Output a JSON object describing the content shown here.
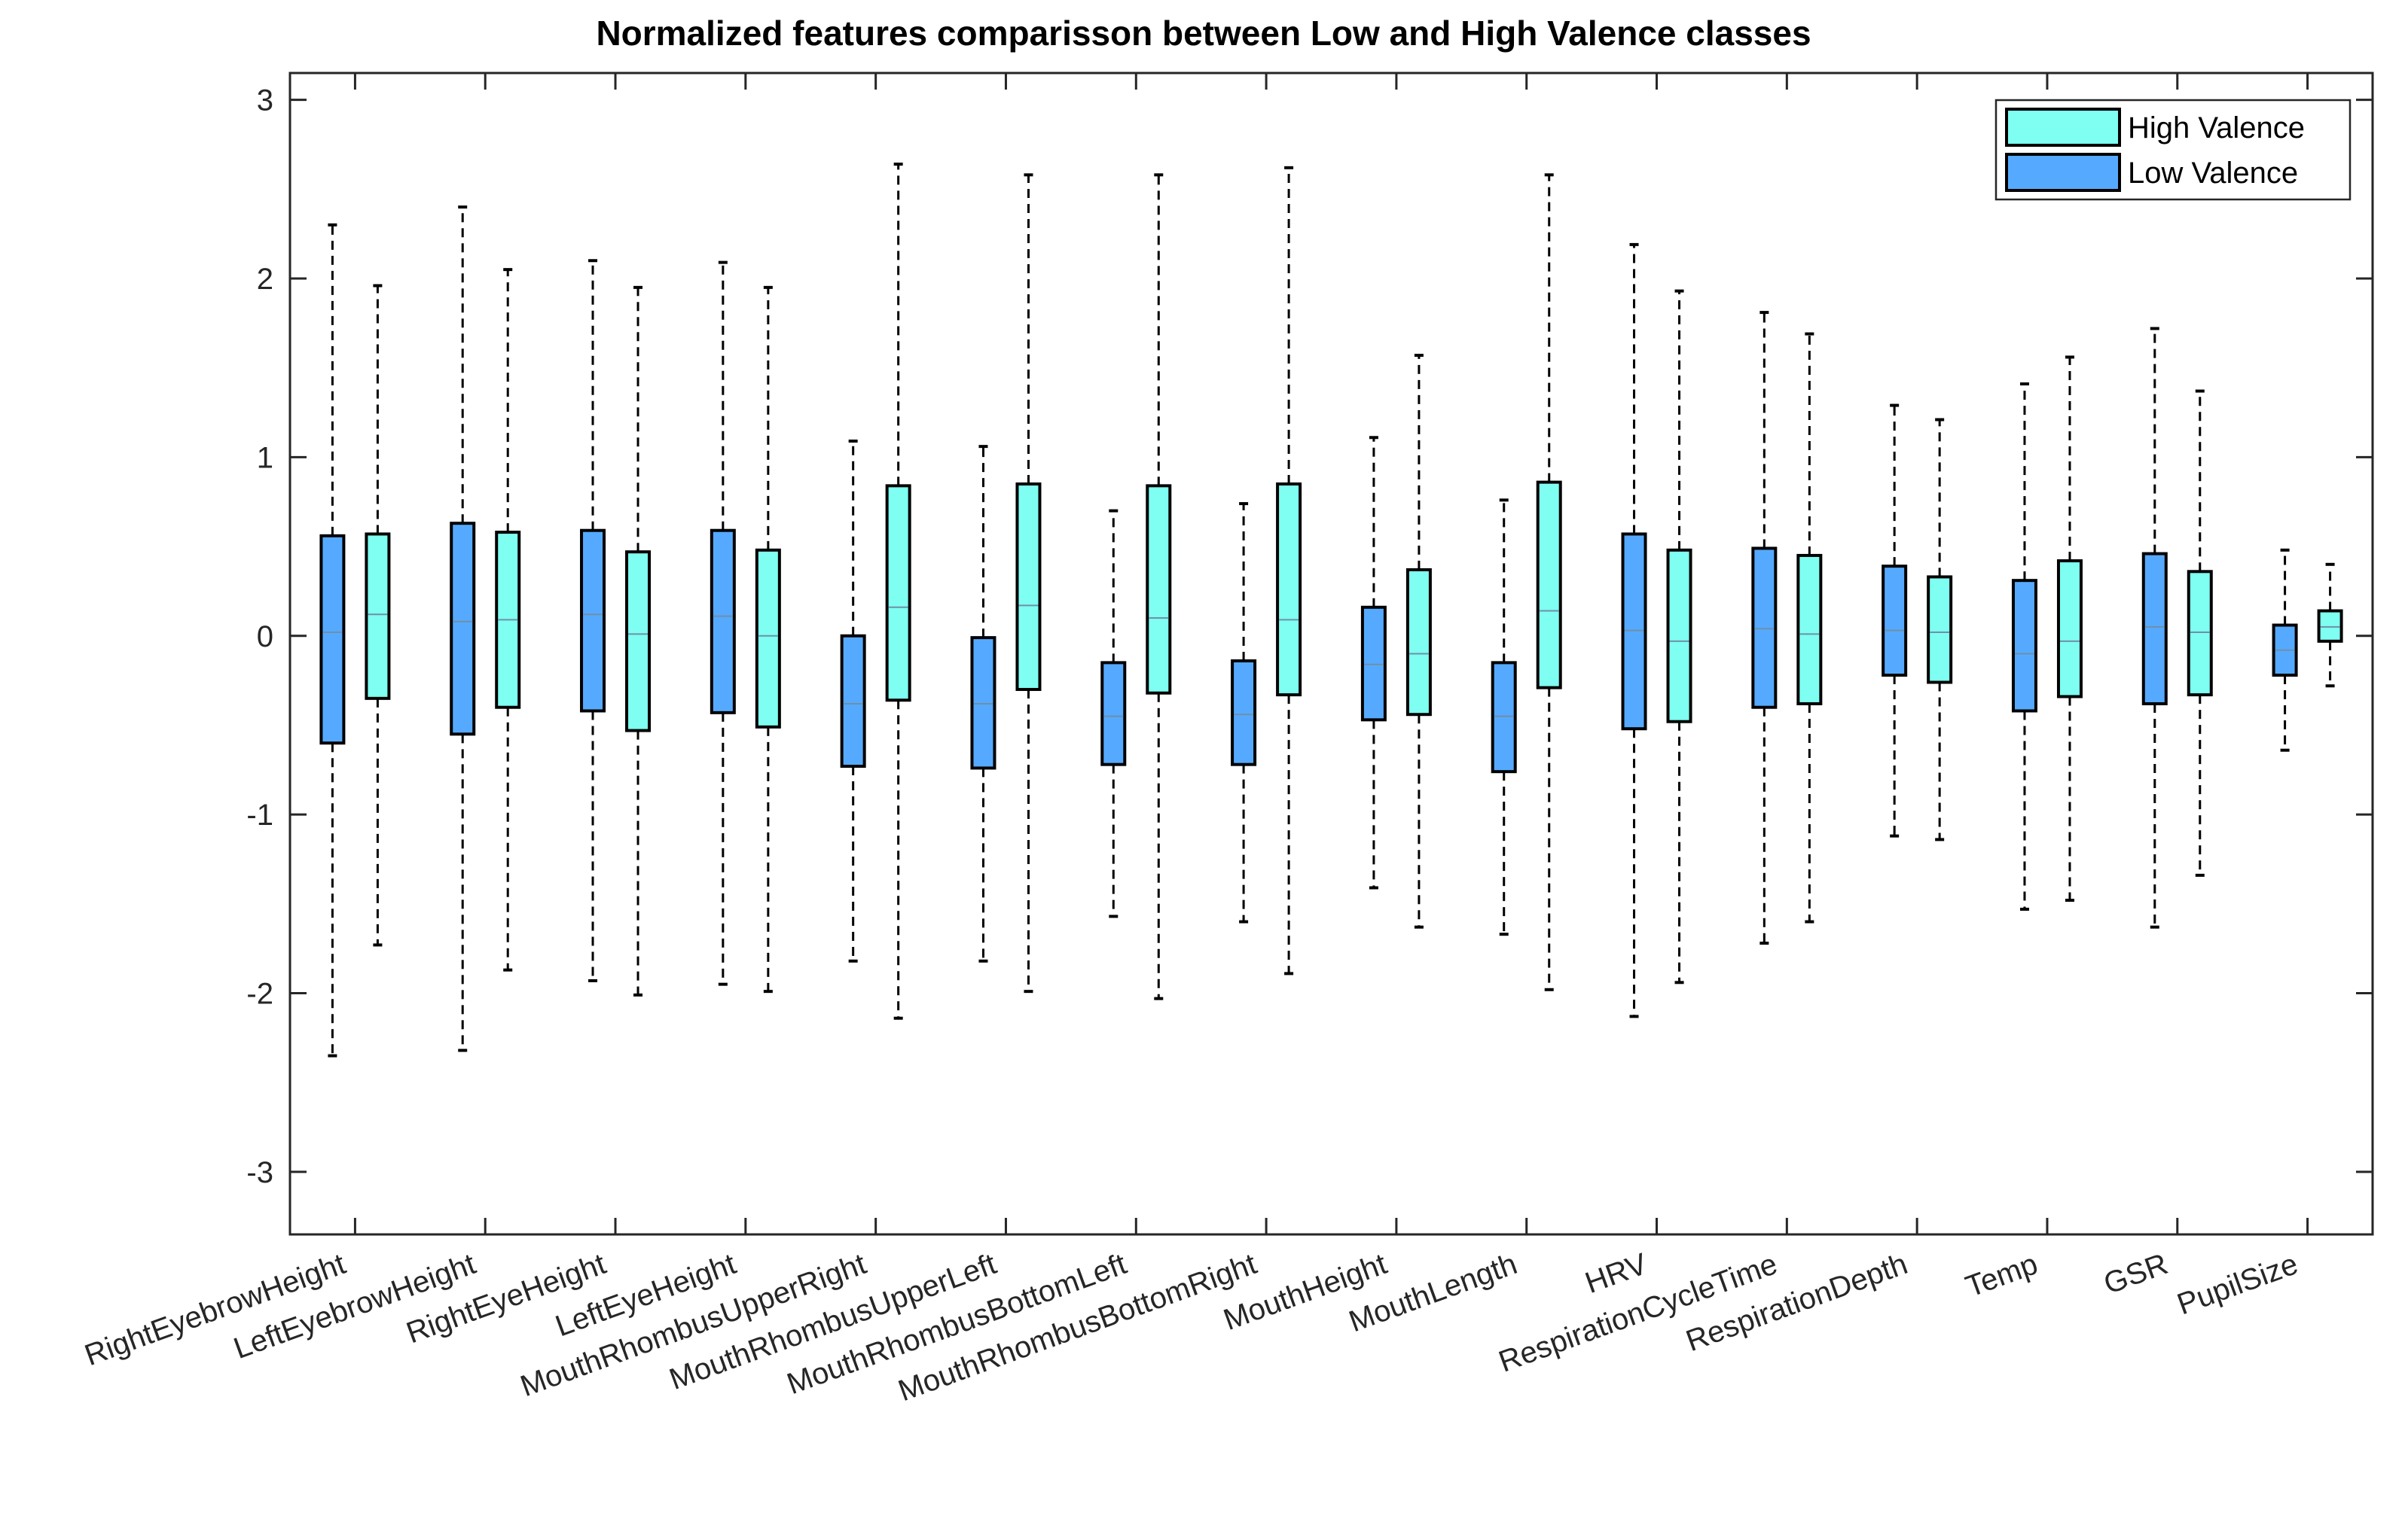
{
  "chart_data": {
    "type": "boxplot",
    "title": "Normalized features comparisson between Low and High Valence classes",
    "xlabel": "",
    "ylabel": "",
    "ylim": [
      -3.35,
      3.15
    ],
    "yticks": [
      -3,
      -2,
      -1,
      0,
      1,
      2,
      3
    ],
    "grid": false,
    "legend_position": "top-right",
    "categories": [
      "RightEyebrowHeight",
      "LeftEyebrowHeight",
      "RightEyeHeight",
      "LeftEyeHeight",
      "MouthRhombusUpperRight",
      "MouthRhombusUpperLeft",
      "MouthRhombusBottomLeft",
      "MouthRhombusBottomRight",
      "MouthHeight",
      "MouthLength",
      "HRV",
      "RespirationCycleTime",
      "RespirationDepth",
      "Temp",
      "GSR",
      "PupilSize"
    ],
    "series": [
      {
        "name": "Low Valence",
        "color": "#55aaff",
        "boxes": [
          {
            "whisker_low": -2.35,
            "q1": -0.6,
            "median": 0.02,
            "q3": 0.56,
            "whisker_high": 2.3
          },
          {
            "whisker_low": -2.32,
            "q1": -0.55,
            "median": 0.08,
            "q3": 0.63,
            "whisker_high": 2.4
          },
          {
            "whisker_low": -1.93,
            "q1": -0.42,
            "median": 0.12,
            "q3": 0.59,
            "whisker_high": 2.1
          },
          {
            "whisker_low": -1.95,
            "q1": -0.43,
            "median": 0.11,
            "q3": 0.59,
            "whisker_high": 2.09
          },
          {
            "whisker_low": -1.82,
            "q1": -0.73,
            "median": -0.38,
            "q3": 0.0,
            "whisker_high": 1.09
          },
          {
            "whisker_low": -1.82,
            "q1": -0.74,
            "median": -0.38,
            "q3": -0.01,
            "whisker_high": 1.06
          },
          {
            "whisker_low": -1.57,
            "q1": -0.72,
            "median": -0.45,
            "q3": -0.15,
            "whisker_high": 0.7
          },
          {
            "whisker_low": -1.6,
            "q1": -0.72,
            "median": -0.44,
            "q3": -0.14,
            "whisker_high": 0.74
          },
          {
            "whisker_low": -1.41,
            "q1": -0.47,
            "median": -0.16,
            "q3": 0.16,
            "whisker_high": 1.11
          },
          {
            "whisker_low": -1.67,
            "q1": -0.76,
            "median": -0.45,
            "q3": -0.15,
            "whisker_high": 0.76
          },
          {
            "whisker_low": -2.13,
            "q1": -0.52,
            "median": 0.03,
            "q3": 0.57,
            "whisker_high": 2.19
          },
          {
            "whisker_low": -1.72,
            "q1": -0.4,
            "median": 0.04,
            "q3": 0.49,
            "whisker_high": 1.81
          },
          {
            "whisker_low": -1.12,
            "q1": -0.22,
            "median": 0.03,
            "q3": 0.39,
            "whisker_high": 1.29
          },
          {
            "whisker_low": -1.53,
            "q1": -0.42,
            "median": -0.1,
            "q3": 0.31,
            "whisker_high": 1.41
          },
          {
            "whisker_low": -1.63,
            "q1": -0.38,
            "median": 0.05,
            "q3": 0.46,
            "whisker_high": 1.72
          },
          {
            "whisker_low": -0.64,
            "q1": -0.22,
            "median": -0.08,
            "q3": 0.06,
            "whisker_high": 0.48
          }
        ]
      },
      {
        "name": "High Valence",
        "color": "#7ffff2",
        "boxes": [
          {
            "whisker_low": -1.73,
            "q1": -0.35,
            "median": 0.12,
            "q3": 0.57,
            "whisker_high": 1.96
          },
          {
            "whisker_low": -1.87,
            "q1": -0.4,
            "median": 0.09,
            "q3": 0.58,
            "whisker_high": 2.05
          },
          {
            "whisker_low": -2.01,
            "q1": -0.53,
            "median": 0.01,
            "q3": 0.47,
            "whisker_high": 1.95
          },
          {
            "whisker_low": -1.99,
            "q1": -0.51,
            "median": 0.0,
            "q3": 0.48,
            "whisker_high": 1.95
          },
          {
            "whisker_low": -2.14,
            "q1": -0.36,
            "median": 0.16,
            "q3": 0.84,
            "whisker_high": 2.64
          },
          {
            "whisker_low": -1.99,
            "q1": -0.3,
            "median": 0.17,
            "q3": 0.85,
            "whisker_high": 2.58
          },
          {
            "whisker_low": -2.03,
            "q1": -0.32,
            "median": 0.1,
            "q3": 0.84,
            "whisker_high": 2.58
          },
          {
            "whisker_low": -1.89,
            "q1": -0.33,
            "median": 0.09,
            "q3": 0.85,
            "whisker_high": 2.62
          },
          {
            "whisker_low": -1.63,
            "q1": -0.44,
            "median": -0.1,
            "q3": 0.37,
            "whisker_high": 1.57
          },
          {
            "whisker_low": -1.98,
            "q1": -0.29,
            "median": 0.14,
            "q3": 0.86,
            "whisker_high": 2.58
          },
          {
            "whisker_low": -1.94,
            "q1": -0.48,
            "median": -0.03,
            "q3": 0.48,
            "whisker_high": 1.93
          },
          {
            "whisker_low": -1.6,
            "q1": -0.38,
            "median": 0.01,
            "q3": 0.45,
            "whisker_high": 1.69
          },
          {
            "whisker_low": -1.14,
            "q1": -0.26,
            "median": 0.02,
            "q3": 0.33,
            "whisker_high": 1.21
          },
          {
            "whisker_low": -1.48,
            "q1": -0.34,
            "median": -0.03,
            "q3": 0.42,
            "whisker_high": 1.56
          },
          {
            "whisker_low": -1.34,
            "q1": -0.33,
            "median": 0.02,
            "q3": 0.36,
            "whisker_high": 1.37
          },
          {
            "whisker_low": -0.28,
            "q1": -0.03,
            "median": 0.05,
            "q3": 0.14,
            "whisker_high": 0.4
          }
        ]
      }
    ],
    "legend": [
      "High Valence",
      "Low Valence"
    ]
  }
}
